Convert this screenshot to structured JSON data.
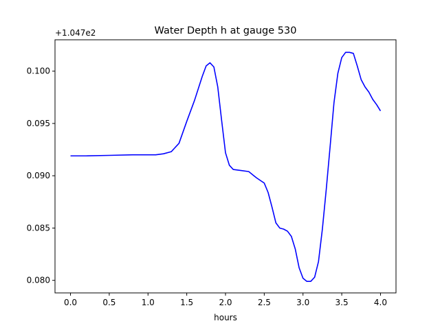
{
  "chart_data": {
    "type": "line",
    "title": "Water Depth h at gauge 530",
    "xlabel": "hours",
    "ylabel": "",
    "y_offset_label": "+1.047e2",
    "xlim": [
      -0.2,
      4.2
    ],
    "ylim": [
      0.0788,
      0.103
    ],
    "x_ticks": [
      0.0,
      0.5,
      1.0,
      1.5,
      2.0,
      2.5,
      3.0,
      3.5,
      4.0
    ],
    "x_tick_labels": [
      "0.0",
      "0.5",
      "1.0",
      "1.5",
      "2.0",
      "2.5",
      "3.0",
      "3.5",
      "4.0"
    ],
    "y_ticks": [
      0.08,
      0.085,
      0.09,
      0.095,
      0.1
    ],
    "y_tick_labels": [
      "0.080",
      "0.085",
      "0.090",
      "0.095",
      "0.100"
    ],
    "grid": false,
    "legend": "none",
    "series": [
      {
        "color": "#0000ff",
        "x": [
          0.0,
          0.2,
          0.5,
          0.8,
          1.0,
          1.1,
          1.2,
          1.3,
          1.4,
          1.5,
          1.6,
          1.7,
          1.75,
          1.8,
          1.85,
          1.9,
          1.95,
          2.0,
          2.05,
          2.1,
          2.2,
          2.3,
          2.35,
          2.4,
          2.5,
          2.55,
          2.6,
          2.65,
          2.7,
          2.75,
          2.8,
          2.85,
          2.9,
          2.95,
          3.0,
          3.05,
          3.1,
          3.15,
          3.2,
          3.25,
          3.3,
          3.35,
          3.4,
          3.45,
          3.5,
          3.55,
          3.6,
          3.65,
          3.7,
          3.75,
          3.8,
          3.85,
          3.9,
          3.95,
          4.0
        ],
        "y": [
          0.0919,
          0.0919,
          0.09195,
          0.092,
          0.092,
          0.092,
          0.0921,
          0.0923,
          0.0931,
          0.0952,
          0.0972,
          0.0995,
          0.1005,
          0.1008,
          0.1004,
          0.0985,
          0.0953,
          0.0922,
          0.091,
          0.0906,
          0.0905,
          0.0904,
          0.0901,
          0.0898,
          0.0893,
          0.0884,
          0.087,
          0.0855,
          0.085,
          0.0849,
          0.0847,
          0.0842,
          0.083,
          0.0812,
          0.0802,
          0.0799,
          0.0799,
          0.0803,
          0.0818,
          0.0849,
          0.0887,
          0.0928,
          0.097,
          0.0998,
          0.1013,
          0.1018,
          0.1018,
          0.1017,
          0.1005,
          0.0992,
          0.0985,
          0.098,
          0.0973,
          0.0968,
          0.0962
        ]
      }
    ]
  }
}
